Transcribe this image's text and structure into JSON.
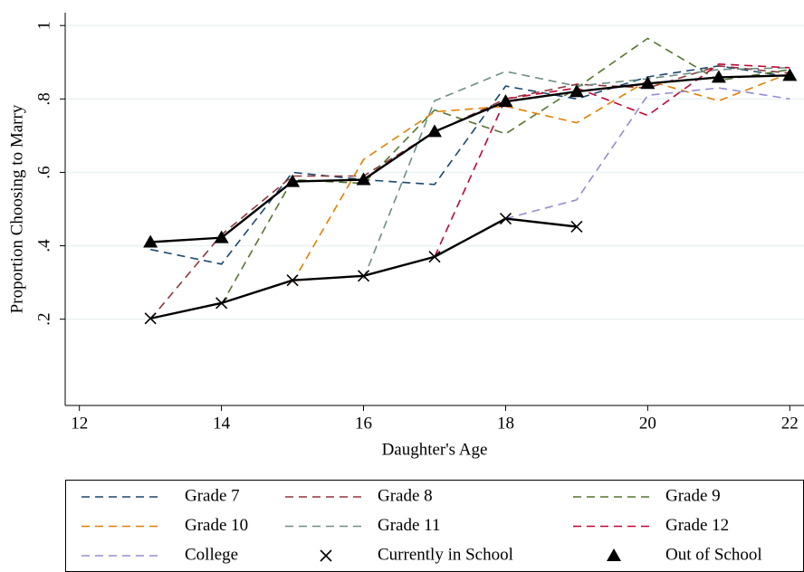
{
  "chart_data": {
    "type": "line",
    "xlabel": "Daughter's Age",
    "ylabel": "Proportion Choosing to Marry",
    "x": [
      13,
      14,
      15,
      16,
      17,
      18,
      19,
      20,
      21,
      22
    ],
    "xlim": [
      11.8,
      22.2
    ],
    "xticks": [
      12,
      14,
      16,
      18,
      20,
      22
    ],
    "ylim": [
      -0.035,
      1.035
    ],
    "yticks": [
      {
        "value": 0.2,
        "label": ".2"
      },
      {
        "value": 0.4,
        "label": ".4"
      },
      {
        "value": 0.6,
        "label": ".6"
      },
      {
        "value": 0.8,
        "label": ".8"
      },
      1
    ],
    "grid": true,
    "legend": "bottom",
    "series": [
      {
        "name": "Grade 7",
        "color": "#1a476f",
        "dash": true,
        "values": [
          0.39,
          0.35,
          0.6,
          0.58,
          0.567,
          0.835,
          0.8,
          0.86,
          0.89,
          0.86
        ]
      },
      {
        "name": "Grade 8",
        "color": "#90353b",
        "dash": true,
        "values": [
          0.2,
          0.43,
          0.59,
          0.59,
          0.71,
          0.8,
          0.84,
          0.83,
          0.89,
          0.87
        ]
      },
      {
        "name": "Grade 9",
        "color": "#55752f",
        "dash": true,
        "values": [
          null,
          0.24,
          0.58,
          0.57,
          0.77,
          0.705,
          0.83,
          0.965,
          0.85,
          0.88
        ]
      },
      {
        "name": "Grade 10",
        "color": "#e37e00",
        "dash": true,
        "values": [
          null,
          null,
          0.3,
          0.635,
          0.765,
          0.78,
          0.735,
          0.85,
          0.795,
          0.87
        ]
      },
      {
        "name": "Grade 11",
        "color": "#6e8e84",
        "dash": true,
        "values": [
          null,
          null,
          null,
          0.31,
          0.795,
          0.875,
          0.835,
          0.855,
          0.88,
          0.885
        ]
      },
      {
        "name": "Grade 12",
        "color": "#c10534",
        "dash": true,
        "values": [
          null,
          null,
          null,
          null,
          0.37,
          0.8,
          0.83,
          0.755,
          0.895,
          0.885
        ]
      },
      {
        "name": "College",
        "color": "#938dd2",
        "dash": true,
        "values": [
          null,
          null,
          null,
          null,
          null,
          0.474,
          0.525,
          0.81,
          0.83,
          0.8
        ]
      },
      {
        "name": "Currently in School",
        "color": "#000000",
        "marker": "x",
        "values": [
          0.202,
          0.244,
          0.306,
          0.318,
          0.37,
          0.474,
          0.452,
          null,
          null,
          null
        ]
      },
      {
        "name": "Out of School",
        "color": "#000000",
        "marker": "triangle",
        "values": [
          0.41,
          0.422,
          0.575,
          0.58,
          0.711,
          0.793,
          0.82,
          0.842,
          0.859,
          0.864
        ]
      }
    ]
  }
}
